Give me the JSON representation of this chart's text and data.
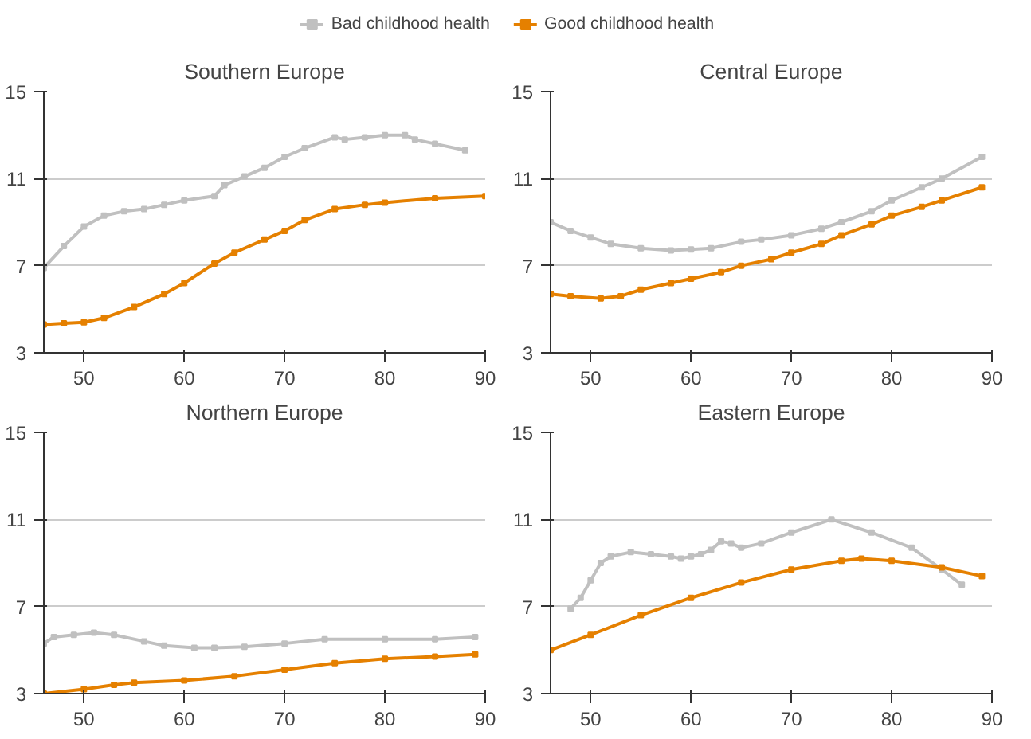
{
  "chart_data": [
    {
      "type": "line",
      "title": "Southern Europe",
      "xlim": [
        46,
        90
      ],
      "xticks": [
        50,
        60,
        70,
        80,
        90
      ],
      "ylim": [
        3,
        15
      ],
      "yticks": [
        3,
        7,
        11,
        15
      ],
      "grid": "y",
      "marker": "square",
      "legend": "top",
      "series": [
        {
          "name": "Bad childhood health",
          "color": "#c0c0c0",
          "x": [
            46,
            48,
            50,
            52,
            54,
            56,
            58,
            60,
            63,
            64,
            66,
            68,
            70,
            72,
            75,
            76,
            78,
            80,
            82,
            83,
            85,
            88
          ],
          "values": [
            6.9,
            7.9,
            8.8,
            9.3,
            9.5,
            9.6,
            9.8,
            10.0,
            10.2,
            10.7,
            11.1,
            11.5,
            12.0,
            12.4,
            12.9,
            12.8,
            12.9,
            13.0,
            13.0,
            12.8,
            12.6,
            12.3
          ]
        },
        {
          "name": "Good childhood health",
          "color": "#e58000",
          "x": [
            46,
            48,
            50,
            52,
            55,
            58,
            60,
            63,
            65,
            68,
            70,
            72,
            75,
            78,
            80,
            85,
            90
          ],
          "values": [
            4.3,
            4.35,
            4.4,
            4.6,
            5.1,
            5.7,
            6.2,
            7.1,
            7.6,
            8.2,
            8.6,
            9.1,
            9.6,
            9.8,
            9.9,
            10.1,
            10.2
          ]
        }
      ]
    },
    {
      "type": "line",
      "title": "Central Europe",
      "xlim": [
        46,
        90
      ],
      "xticks": [
        50,
        60,
        70,
        80,
        90
      ],
      "ylim": [
        3,
        15
      ],
      "yticks": [
        3,
        7,
        11,
        15
      ],
      "grid": "y",
      "marker": "square",
      "series": [
        {
          "color": "#c0c0c0",
          "x": [
            46,
            48,
            50,
            52,
            55,
            58,
            60,
            62,
            65,
            67,
            70,
            73,
            75,
            78,
            80,
            83,
            85,
            89
          ],
          "values": [
            9.0,
            8.6,
            8.3,
            8.0,
            7.8,
            7.7,
            7.75,
            7.8,
            8.1,
            8.2,
            8.4,
            8.7,
            9.0,
            9.5,
            10.0,
            10.6,
            11.0,
            12.0
          ]
        },
        {
          "color": "#e58000",
          "x": [
            46,
            48,
            51,
            53,
            55,
            58,
            60,
            63,
            65,
            68,
            70,
            73,
            75,
            78,
            80,
            83,
            85,
            89
          ],
          "values": [
            5.7,
            5.6,
            5.5,
            5.6,
            5.9,
            6.2,
            6.4,
            6.7,
            7.0,
            7.3,
            7.6,
            8.0,
            8.4,
            8.9,
            9.3,
            9.7,
            10.0,
            10.6
          ]
        }
      ]
    },
    {
      "type": "line",
      "title": "Northern Europe",
      "xlim": [
        46,
        90
      ],
      "xticks": [
        50,
        60,
        70,
        80,
        90
      ],
      "ylim": [
        3,
        15
      ],
      "yticks": [
        3,
        7,
        11,
        15
      ],
      "grid": "y",
      "marker": "square",
      "series": [
        {
          "color": "#c0c0c0",
          "x": [
            46,
            47,
            49,
            51,
            53,
            56,
            58,
            61,
            63,
            66,
            70,
            74,
            80,
            85,
            89
          ],
          "values": [
            5.3,
            5.6,
            5.7,
            5.8,
            5.7,
            5.4,
            5.2,
            5.1,
            5.1,
            5.15,
            5.3,
            5.5,
            5.5,
            5.5,
            5.6
          ]
        },
        {
          "color": "#e58000",
          "x": [
            46,
            50,
            53,
            55,
            60,
            65,
            70,
            75,
            80,
            85,
            89
          ],
          "values": [
            3.0,
            3.2,
            3.4,
            3.5,
            3.6,
            3.8,
            4.1,
            4.4,
            4.6,
            4.7,
            4.8
          ]
        }
      ]
    },
    {
      "type": "line",
      "title": "Eastern Europe",
      "xlim": [
        46,
        90
      ],
      "xticks": [
        50,
        60,
        70,
        80,
        90
      ],
      "ylim": [
        3,
        15
      ],
      "yticks": [
        3,
        7,
        11,
        15
      ],
      "grid": "y",
      "marker": "square",
      "series": [
        {
          "color": "#c0c0c0",
          "x": [
            48,
            49,
            50,
            51,
            52,
            54,
            56,
            58,
            59,
            60,
            61,
            62,
            63,
            64,
            65,
            67,
            70,
            74,
            78,
            82,
            85,
            87
          ],
          "values": [
            6.9,
            7.4,
            8.2,
            9.0,
            9.3,
            9.5,
            9.4,
            9.3,
            9.2,
            9.3,
            9.4,
            9.6,
            10.0,
            9.9,
            9.7,
            9.9,
            10.4,
            11.0,
            10.4,
            9.7,
            8.7,
            8.0
          ]
        },
        {
          "color": "#e58000",
          "x": [
            46,
            50,
            55,
            60,
            65,
            70,
            75,
            77,
            80,
            85,
            89
          ],
          "values": [
            5.0,
            5.7,
            6.6,
            7.4,
            8.1,
            8.7,
            9.1,
            9.2,
            9.1,
            8.8,
            8.4
          ]
        }
      ]
    }
  ]
}
